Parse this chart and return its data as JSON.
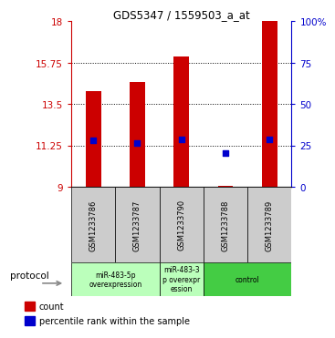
{
  "title": "GDS5347 / 1559503_a_at",
  "samples": [
    "GSM1233786",
    "GSM1233787",
    "GSM1233790",
    "GSM1233788",
    "GSM1233789"
  ],
  "bar_values": [
    14.2,
    14.7,
    16.1,
    9.05,
    18.0
  ],
  "percentile_values": [
    11.5,
    11.4,
    11.55,
    10.85,
    11.55
  ],
  "ymin": 9,
  "ymax": 18,
  "yticks": [
    9,
    11.25,
    13.5,
    15.75,
    18
  ],
  "ytick_labels": [
    "9",
    "11.25",
    "13.5",
    "15.75",
    "18"
  ],
  "right_yticks": [
    0,
    25,
    50,
    75,
    100
  ],
  "right_ytick_labels": [
    "0",
    "25",
    "50",
    "75",
    "100%"
  ],
  "hlines": [
    11.25,
    13.5,
    15.75
  ],
  "bar_color": "#cc0000",
  "dot_color": "#0000cc",
  "bar_width": 0.35,
  "group_info": [
    {
      "start": 0,
      "end": 2,
      "label": "miR-483-5p\noverexpression",
      "color": "#bbffbb"
    },
    {
      "start": 2,
      "end": 3,
      "label": "miR-483-3\np overexpr\nession",
      "color": "#bbffbb"
    },
    {
      "start": 3,
      "end": 5,
      "label": "control",
      "color": "#44cc44"
    }
  ],
  "protocol_label": "protocol",
  "legend_count_label": "count",
  "legend_percentile_label": "percentile rank within the sample",
  "bar_color_left": "#cc0000",
  "dot_color_right": "#0000cc",
  "sample_box_color": "#cccccc",
  "fig_bg": "#ffffff"
}
